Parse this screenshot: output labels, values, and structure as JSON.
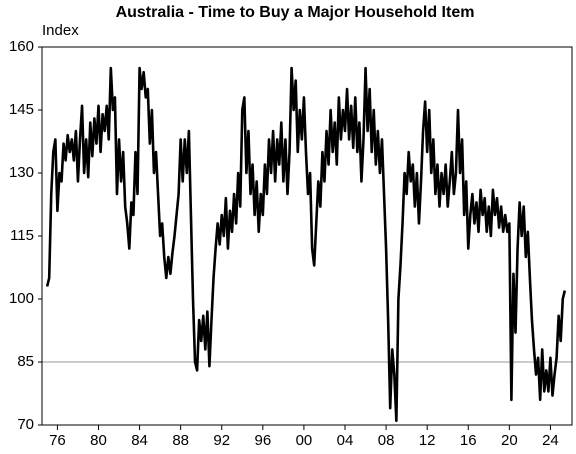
{
  "chart_data": {
    "type": "line",
    "title": "Australia - Time to Buy a Major Household Item",
    "ylabel": "Index",
    "color": "#000000",
    "reference_line": 85,
    "xlim": [
      1974.5,
      2026.1
    ],
    "ylim": [
      70,
      160
    ],
    "yticks": [
      70,
      85,
      100,
      115,
      130,
      145,
      160
    ],
    "xticks": [
      {
        "value": 1976,
        "label": "76"
      },
      {
        "value": 1980,
        "label": "80"
      },
      {
        "value": 1984,
        "label": "84"
      },
      {
        "value": 1988,
        "label": "88"
      },
      {
        "value": 1992,
        "label": "92"
      },
      {
        "value": 1996,
        "label": "96"
      },
      {
        "value": 2000,
        "label": "00"
      },
      {
        "value": 2004,
        "label": "04"
      },
      {
        "value": 2008,
        "label": "08"
      },
      {
        "value": 2012,
        "label": "12"
      },
      {
        "value": 2016,
        "label": "16"
      },
      {
        "value": 2020,
        "label": "20"
      },
      {
        "value": 2024,
        "label": "24"
      }
    ],
    "x": [
      1975,
      1975.2,
      1975.4,
      1975.6,
      1975.8,
      1976,
      1976.2,
      1976.4,
      1976.6,
      1976.8,
      1977,
      1977.2,
      1977.4,
      1977.6,
      1977.8,
      1978,
      1978.2,
      1978.4,
      1978.6,
      1978.8,
      1979,
      1979.2,
      1979.4,
      1979.6,
      1979.8,
      1980,
      1980.2,
      1980.4,
      1980.6,
      1980.8,
      1981,
      1981.2,
      1981.4,
      1981.6,
      1981.8,
      1982,
      1982.2,
      1982.4,
      1982.6,
      1982.8,
      1983,
      1983.2,
      1983.4,
      1983.6,
      1983.8,
      1984,
      1984.2,
      1984.4,
      1984.6,
      1984.8,
      1985,
      1985.2,
      1985.4,
      1985.6,
      1985.8,
      1986,
      1986.2,
      1986.4,
      1986.6,
      1986.8,
      1987,
      1987.2,
      1987.4,
      1987.6,
      1987.8,
      1988,
      1988.2,
      1988.4,
      1988.6,
      1988.8,
      1989,
      1989.2,
      1989.4,
      1989.6,
      1989.8,
      1990,
      1990.2,
      1990.4,
      1990.6,
      1990.8,
      1991,
      1991.2,
      1991.4,
      1991.6,
      1991.8,
      1992,
      1992.2,
      1992.4,
      1992.6,
      1992.8,
      1993,
      1993.2,
      1993.4,
      1993.6,
      1993.8,
      1994,
      1994.2,
      1994.4,
      1994.6,
      1994.8,
      1995,
      1995.2,
      1995.4,
      1995.6,
      1995.8,
      1996,
      1996.2,
      1996.4,
      1996.6,
      1996.8,
      1997,
      1997.2,
      1997.4,
      1997.6,
      1997.8,
      1998,
      1998.2,
      1998.4,
      1998.6,
      1998.8,
      1999,
      1999.2,
      1999.4,
      1999.6,
      1999.8,
      2000,
      2000.2,
      2000.4,
      2000.6,
      2000.8,
      2001,
      2001.2,
      2001.4,
      2001.6,
      2001.8,
      2002,
      2002.2,
      2002.4,
      2002.6,
      2002.8,
      2003,
      2003.2,
      2003.4,
      2003.6,
      2003.8,
      2004,
      2004.2,
      2004.4,
      2004.6,
      2004.8,
      2005,
      2005.2,
      2005.4,
      2005.6,
      2005.8,
      2006,
      2006.2,
      2006.4,
      2006.6,
      2006.8,
      2007,
      2007.2,
      2007.4,
      2007.6,
      2007.8,
      2008,
      2008.2,
      2008.4,
      2008.6,
      2008.8,
      2009,
      2009.2,
      2009.4,
      2009.6,
      2009.8,
      2010,
      2010.2,
      2010.4,
      2010.6,
      2010.8,
      2011,
      2011.2,
      2011.4,
      2011.6,
      2011.8,
      2012,
      2012.2,
      2012.4,
      2012.6,
      2012.8,
      2013,
      2013.2,
      2013.4,
      2013.6,
      2013.8,
      2014,
      2014.2,
      2014.4,
      2014.6,
      2014.8,
      2015,
      2015.2,
      2015.4,
      2015.6,
      2015.8,
      2016,
      2016.2,
      2016.4,
      2016.6,
      2016.8,
      2017,
      2017.2,
      2017.4,
      2017.6,
      2017.8,
      2018,
      2018.2,
      2018.4,
      2018.6,
      2018.8,
      2019,
      2019.2,
      2019.4,
      2019.6,
      2019.8,
      2020,
      2020.2,
      2020.4,
      2020.6,
      2020.8,
      2021,
      2021.2,
      2021.4,
      2021.6,
      2021.8,
      2022,
      2022.2,
      2022.4,
      2022.6,
      2022.8,
      2023,
      2023.2,
      2023.4,
      2023.6,
      2023.8,
      2024,
      2024.2,
      2024.4,
      2024.6,
      2024.8,
      2025,
      2025.2,
      2025.4
    ],
    "values": [
      103,
      105,
      125,
      135,
      138,
      121,
      130,
      128,
      137,
      133,
      139,
      135,
      138,
      133,
      140,
      128,
      138,
      146,
      130,
      138,
      129,
      142,
      134,
      143,
      137,
      146,
      135,
      144,
      140,
      146,
      138,
      155,
      145,
      148,
      125,
      138,
      128,
      135,
      122,
      118,
      112,
      123,
      120,
      135,
      125,
      155,
      150,
      154,
      148,
      150,
      137,
      145,
      130,
      135,
      125,
      115,
      118,
      110,
      105,
      110,
      106,
      111,
      115,
      120,
      125,
      138,
      128,
      138,
      130,
      140,
      120,
      100,
      85,
      83,
      95,
      90,
      96,
      88,
      97,
      84,
      95,
      105,
      112,
      118,
      113,
      120,
      115,
      124,
      112,
      121,
      116,
      125,
      118,
      130,
      122,
      145,
      148,
      130,
      140,
      125,
      132,
      120,
      128,
      116,
      125,
      120,
      132,
      125,
      138,
      130,
      140,
      128,
      138,
      132,
      142,
      128,
      138,
      125,
      135,
      155,
      145,
      152,
      135,
      145,
      138,
      148,
      135,
      125,
      130,
      112,
      108,
      118,
      128,
      122,
      135,
      128,
      140,
      132,
      145,
      135,
      142,
      132,
      148,
      138,
      145,
      140,
      150,
      138,
      146,
      136,
      148,
      135,
      142,
      128,
      138,
      155,
      140,
      150,
      135,
      145,
      132,
      140,
      130,
      138,
      125,
      112,
      95,
      74,
      88,
      82,
      71,
      100,
      108,
      118,
      130,
      125,
      135,
      128,
      132,
      122,
      130,
      118,
      128,
      140,
      147,
      135,
      145,
      130,
      138,
      125,
      132,
      122,
      130,
      125,
      132,
      122,
      128,
      135,
      125,
      130,
      145,
      130,
      138,
      120,
      128,
      112,
      120,
      125,
      118,
      123,
      116,
      126,
      120,
      124,
      116,
      122,
      115,
      126,
      120,
      124,
      117,
      122,
      116,
      120,
      116,
      118,
      76,
      106,
      92,
      112,
      123,
      115,
      122,
      110,
      116,
      105,
      95,
      88,
      82,
      86,
      76,
      88,
      78,
      83,
      78,
      86,
      77,
      82,
      86,
      96,
      90,
      100,
      102
    ]
  }
}
